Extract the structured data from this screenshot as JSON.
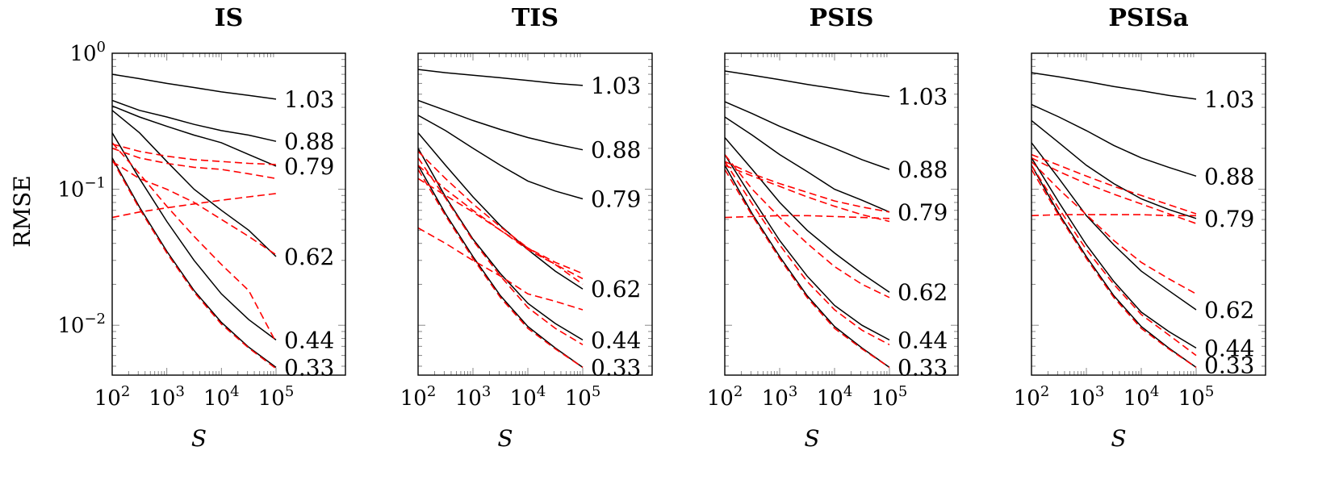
{
  "figure": {
    "ylabel": "RMSE",
    "xlabel": "S"
  },
  "colors": {
    "black": "#000000",
    "red": "#ff0000"
  },
  "chart_data": [
    {
      "type": "line",
      "title": "IS",
      "xlabel": "S",
      "ylabel": "RMSE",
      "xscale": "log",
      "yscale": "log",
      "xlim": [
        100,
        100000
      ],
      "ylim": [
        0.0043,
        1.0
      ],
      "x": [
        100,
        316,
        1000,
        3162,
        10000,
        31623,
        100000
      ],
      "x_ticks": [
        100,
        1000,
        10000,
        100000
      ],
      "x_tick_labels": [
        "10^2",
        "10^3",
        "10^4",
        "10^5"
      ],
      "y_ticks": [
        0.01,
        0.1,
        1.0
      ],
      "y_tick_labels": [
        "10^-2",
        "10^-1",
        "10^0"
      ],
      "line_labels": [
        "1.03",
        "0.88",
        "0.79",
        "0.62",
        "0.44",
        "0.33"
      ],
      "line_label_y": [
        0.46,
        0.225,
        0.148,
        0.032,
        0.0078,
        0.0049
      ],
      "series": [
        {
          "label": "1.03",
          "style": "solid",
          "color": "#000000",
          "values": [
            0.7,
            0.65,
            0.6,
            0.56,
            0.52,
            0.49,
            0.46
          ]
        },
        {
          "label": "0.88",
          "style": "solid",
          "color": "#000000",
          "values": [
            0.45,
            0.38,
            0.34,
            0.3,
            0.27,
            0.25,
            0.225
          ]
        },
        {
          "label": "0.79",
          "style": "solid",
          "color": "#000000",
          "values": [
            0.41,
            0.34,
            0.29,
            0.25,
            0.22,
            0.18,
            0.148
          ]
        },
        {
          "label": "0.62",
          "style": "solid",
          "color": "#000000",
          "values": [
            0.38,
            0.26,
            0.16,
            0.1,
            0.07,
            0.05,
            0.032
          ]
        },
        {
          "label": "0.44",
          "style": "solid",
          "color": "#000000",
          "values": [
            0.26,
            0.12,
            0.058,
            0.03,
            0.017,
            0.011,
            0.0078
          ]
        },
        {
          "label": "0.33",
          "style": "solid",
          "color": "#000000",
          "values": [
            0.17,
            0.074,
            0.035,
            0.018,
            0.0105,
            0.0069,
            0.0049
          ]
        },
        {
          "style": "dashed",
          "color": "#ff0000",
          "values": [
            0.215,
            0.19,
            0.175,
            0.165,
            0.16,
            0.155,
            0.152
          ]
        },
        {
          "style": "dashed",
          "color": "#ff0000",
          "values": [
            0.2,
            0.17,
            0.155,
            0.145,
            0.14,
            0.13,
            0.12
          ]
        },
        {
          "style": "dashed",
          "color": "#ff0000",
          "values": [
            0.062,
            0.068,
            0.073,
            0.078,
            0.083,
            0.088,
            0.093
          ]
        },
        {
          "style": "dashed",
          "color": "#ff0000",
          "values": [
            0.22,
            0.13,
            0.075,
            0.045,
            0.028,
            0.018,
            0.0075
          ]
        },
        {
          "style": "dashed",
          "color": "#ff0000",
          "values": [
            0.165,
            0.072,
            0.034,
            0.0175,
            0.0102,
            0.0068,
            0.0048
          ]
        },
        {
          "style": "dashed",
          "color": "#ff0000",
          "values": [
            0.16,
            0.12,
            0.1,
            0.08,
            0.06,
            0.045,
            0.033
          ]
        }
      ]
    },
    {
      "type": "line",
      "title": "TIS",
      "xlabel": "S",
      "xscale": "log",
      "yscale": "log",
      "xlim": [
        100,
        100000
      ],
      "ylim": [
        0.0043,
        1.0
      ],
      "x": [
        100,
        316,
        1000,
        3162,
        10000,
        31623,
        100000
      ],
      "x_ticks": [
        100,
        1000,
        10000,
        100000
      ],
      "x_tick_labels": [
        "10^2",
        "10^3",
        "10^4",
        "10^5"
      ],
      "y_ticks": [
        0.01,
        0.1,
        1.0
      ],
      "line_labels": [
        "1.03",
        "0.88",
        "0.79",
        "0.62",
        "0.44",
        "0.33"
      ],
      "line_label_y": [
        0.58,
        0.195,
        0.085,
        0.0185,
        0.0078,
        0.0049
      ],
      "series": [
        {
          "label": "1.03",
          "style": "solid",
          "color": "#000000",
          "values": [
            0.76,
            0.72,
            0.69,
            0.66,
            0.63,
            0.6,
            0.58
          ]
        },
        {
          "label": "0.88",
          "style": "solid",
          "color": "#000000",
          "values": [
            0.45,
            0.38,
            0.32,
            0.275,
            0.24,
            0.215,
            0.195
          ]
        },
        {
          "label": "0.79",
          "style": "solid",
          "color": "#000000",
          "values": [
            0.35,
            0.27,
            0.2,
            0.15,
            0.115,
            0.097,
            0.085
          ]
        },
        {
          "label": "0.62",
          "style": "solid",
          "color": "#000000",
          "values": [
            0.26,
            0.15,
            0.088,
            0.054,
            0.036,
            0.025,
            0.0185
          ]
        },
        {
          "label": "0.44",
          "style": "solid",
          "color": "#000000",
          "values": [
            0.2,
            0.088,
            0.043,
            0.024,
            0.0145,
            0.0103,
            0.0078
          ]
        },
        {
          "label": "0.33",
          "style": "solid",
          "color": "#000000",
          "values": [
            0.15,
            0.066,
            0.032,
            0.0165,
            0.0098,
            0.0068,
            0.0049
          ]
        },
        {
          "style": "dashed",
          "color": "#ff0000",
          "values": [
            0.19,
            0.12,
            0.078,
            0.053,
            0.037,
            0.028,
            0.022
          ]
        },
        {
          "style": "dashed",
          "color": "#ff0000",
          "values": [
            0.15,
            0.1,
            0.07,
            0.05,
            0.036,
            0.028,
            0.02
          ]
        },
        {
          "style": "dashed",
          "color": "#ff0000",
          "values": [
            0.12,
            0.09,
            0.068,
            0.05,
            0.037,
            0.029,
            0.024
          ]
        },
        {
          "style": "dashed",
          "color": "#ff0000",
          "values": [
            0.052,
            0.04,
            0.03,
            0.023,
            0.017,
            0.015,
            0.013
          ]
        },
        {
          "style": "dashed",
          "color": "#ff0000",
          "values": [
            0.17,
            0.086,
            0.042,
            0.023,
            0.0135,
            0.0095,
            0.0072
          ]
        },
        {
          "style": "dashed",
          "color": "#ff0000",
          "values": [
            0.14,
            0.064,
            0.031,
            0.016,
            0.0095,
            0.0067,
            0.0049
          ]
        }
      ]
    },
    {
      "type": "line",
      "title": "PSIS",
      "xlabel": "S",
      "xscale": "log",
      "yscale": "log",
      "xlim": [
        100,
        100000
      ],
      "ylim": [
        0.0043,
        1.0
      ],
      "x": [
        100,
        316,
        1000,
        3162,
        10000,
        31623,
        100000
      ],
      "x_ticks": [
        100,
        1000,
        10000,
        100000
      ],
      "x_tick_labels": [
        "10^2",
        "10^3",
        "10^4",
        "10^5"
      ],
      "y_ticks": [
        0.01,
        0.1,
        1.0
      ],
      "line_labels": [
        "1.03",
        "0.88",
        "0.79",
        "0.62",
        "0.44",
        "0.33"
      ],
      "line_label_y": [
        0.48,
        0.14,
        0.068,
        0.0175,
        0.0078,
        0.0049
      ],
      "series": [
        {
          "label": "1.03",
          "style": "solid",
          "color": "#000000",
          "values": [
            0.74,
            0.69,
            0.64,
            0.59,
            0.55,
            0.51,
            0.48
          ]
        },
        {
          "label": "0.88",
          "style": "solid",
          "color": "#000000",
          "values": [
            0.44,
            0.36,
            0.29,
            0.24,
            0.2,
            0.165,
            0.14
          ]
        },
        {
          "label": "0.79",
          "style": "solid",
          "color": "#000000",
          "values": [
            0.34,
            0.25,
            0.18,
            0.135,
            0.1,
            0.083,
            0.068
          ]
        },
        {
          "label": "0.62",
          "style": "solid",
          "color": "#000000",
          "values": [
            0.24,
            0.14,
            0.08,
            0.05,
            0.034,
            0.024,
            0.0175
          ]
        },
        {
          "label": "0.44",
          "style": "solid",
          "color": "#000000",
          "values": [
            0.18,
            0.086,
            0.042,
            0.023,
            0.014,
            0.01,
            0.0078
          ]
        },
        {
          "label": "0.33",
          "style": "solid",
          "color": "#000000",
          "values": [
            0.15,
            0.066,
            0.032,
            0.0165,
            0.0098,
            0.0068,
            0.0049
          ]
        },
        {
          "style": "dashed",
          "color": "#ff0000",
          "values": [
            0.16,
            0.13,
            0.11,
            0.095,
            0.082,
            0.074,
            0.068
          ]
        },
        {
          "style": "dashed",
          "color": "#ff0000",
          "values": [
            0.15,
            0.125,
            0.105,
            0.088,
            0.075,
            0.065,
            0.058
          ]
        },
        {
          "style": "dashed",
          "color": "#ff0000",
          "values": [
            0.062,
            0.063,
            0.064,
            0.064,
            0.063,
            0.062,
            0.061
          ]
        },
        {
          "style": "dashed",
          "color": "#ff0000",
          "values": [
            0.18,
            0.1,
            0.062,
            0.04,
            0.027,
            0.02,
            0.016
          ]
        },
        {
          "style": "dashed",
          "color": "#ff0000",
          "values": [
            0.16,
            0.078,
            0.039,
            0.021,
            0.013,
            0.0092,
            0.0072
          ]
        },
        {
          "style": "dashed",
          "color": "#ff0000",
          "values": [
            0.14,
            0.064,
            0.031,
            0.016,
            0.0095,
            0.0067,
            0.0049
          ]
        }
      ]
    },
    {
      "type": "line",
      "title": "PSISa",
      "xlabel": "S",
      "xscale": "log",
      "yscale": "log",
      "xlim": [
        100,
        100000
      ],
      "ylim": [
        0.0043,
        1.0
      ],
      "x": [
        100,
        316,
        1000,
        3162,
        10000,
        31623,
        100000
      ],
      "x_ticks": [
        100,
        1000,
        10000,
        100000
      ],
      "x_tick_labels": [
        "10^2",
        "10^3",
        "10^4",
        "10^5"
      ],
      "y_ticks": [
        0.01,
        0.1,
        1.0
      ],
      "line_labels": [
        "1.03",
        "0.88",
        "0.79",
        "0.62",
        "0.44",
        "0.33"
      ],
      "line_label_y": [
        0.46,
        0.125,
        0.061,
        0.013,
        0.0068,
        0.0051
      ],
      "series": [
        {
          "label": "1.03",
          "style": "solid",
          "color": "#000000",
          "values": [
            0.72,
            0.67,
            0.62,
            0.57,
            0.53,
            0.49,
            0.46
          ]
        },
        {
          "label": "0.88",
          "style": "solid",
          "color": "#000000",
          "values": [
            0.42,
            0.34,
            0.27,
            0.21,
            0.17,
            0.145,
            0.125
          ]
        },
        {
          "label": "0.79",
          "style": "solid",
          "color": "#000000",
          "values": [
            0.32,
            0.22,
            0.15,
            0.11,
            0.085,
            0.071,
            0.061
          ]
        },
        {
          "label": "0.62",
          "style": "solid",
          "color": "#000000",
          "values": [
            0.22,
            0.12,
            0.064,
            0.039,
            0.025,
            0.018,
            0.013
          ]
        },
        {
          "label": "0.44",
          "style": "solid",
          "color": "#000000",
          "values": [
            0.17,
            0.08,
            0.039,
            0.021,
            0.0125,
            0.009,
            0.0068
          ]
        },
        {
          "label": "0.33",
          "style": "solid",
          "color": "#000000",
          "values": [
            0.15,
            0.066,
            0.032,
            0.0165,
            0.0098,
            0.0068,
            0.0049
          ]
        },
        {
          "style": "dashed",
          "color": "#ff0000",
          "values": [
            0.18,
            0.15,
            0.125,
            0.105,
            0.09,
            0.077,
            0.066
          ]
        },
        {
          "style": "dashed",
          "color": "#ff0000",
          "values": [
            0.17,
            0.135,
            0.11,
            0.092,
            0.078,
            0.066,
            0.056
          ]
        },
        {
          "style": "dashed",
          "color": "#ff0000",
          "values": [
            0.064,
            0.065,
            0.065,
            0.065,
            0.065,
            0.064,
            0.064
          ]
        },
        {
          "style": "dashed",
          "color": "#ff0000",
          "values": [
            0.16,
            0.1,
            0.065,
            0.042,
            0.029,
            0.022,
            0.017
          ]
        },
        {
          "style": "dashed",
          "color": "#ff0000",
          "values": [
            0.15,
            0.072,
            0.036,
            0.02,
            0.012,
            0.0085,
            0.006
          ]
        },
        {
          "style": "dashed",
          "color": "#ff0000",
          "values": [
            0.14,
            0.064,
            0.031,
            0.016,
            0.0095,
            0.0067,
            0.0049
          ]
        }
      ]
    }
  ]
}
